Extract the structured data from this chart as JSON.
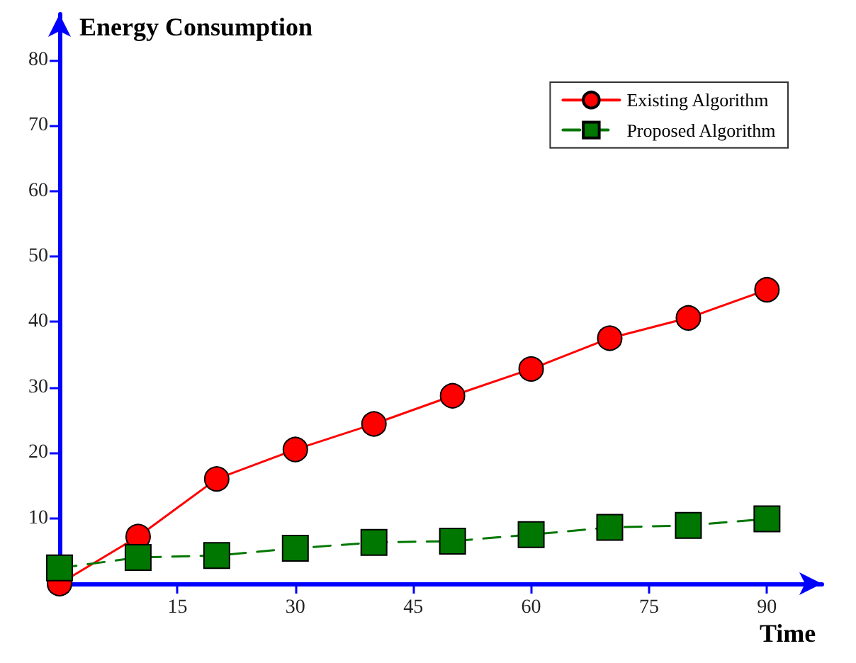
{
  "chart_data": {
    "type": "line",
    "ylabel": "Energy Consumption",
    "xlabel": "Time",
    "x": [
      0,
      10,
      20,
      30,
      40,
      50,
      60,
      70,
      80,
      90
    ],
    "series": [
      {
        "name": "Existing Algorithm",
        "color": "#ff0000",
        "marker": "circle",
        "line_style": "solid",
        "values": [
          0,
          7.2,
          16,
          20.5,
          24.4,
          28.7,
          32.8,
          37.5,
          40.6,
          44.9
        ]
      },
      {
        "name": "Proposed Algorithm",
        "color": "#007700",
        "marker": "square",
        "line_style": "dashed",
        "values": [
          2.4,
          4,
          4.3,
          5.4,
          6.3,
          6.5,
          7.5,
          8.6,
          8.9,
          9.9
        ]
      }
    ],
    "xlim": [
      0,
      97
    ],
    "ylim": [
      0,
      87
    ],
    "xticks": [
      15,
      30,
      45,
      60,
      75,
      90
    ],
    "yticks": [
      10,
      20,
      30,
      40,
      50,
      60,
      70,
      80
    ],
    "grid": false,
    "legend": "top right"
  }
}
